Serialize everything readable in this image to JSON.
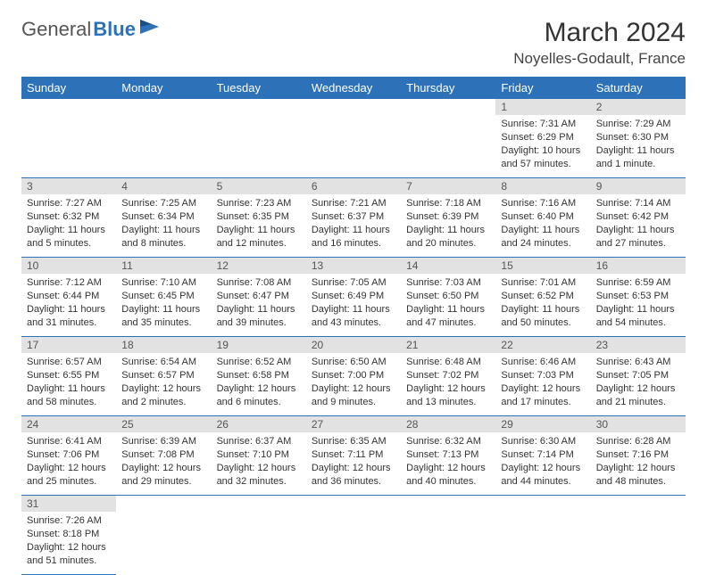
{
  "logo": {
    "part1": "General",
    "part2": "Blue"
  },
  "title": "March 2024",
  "location": "Noyelles-Godault, France",
  "colors": {
    "header_bg": "#2d71b8",
    "header_text": "#ffffff",
    "daynum_bg": "#e2e2e2",
    "border": "#2d71b8",
    "text": "#333333",
    "logo_gray": "#555555",
    "logo_blue": "#2d71b8",
    "page_bg": "#ffffff"
  },
  "weekdays": [
    "Sunday",
    "Monday",
    "Tuesday",
    "Wednesday",
    "Thursday",
    "Friday",
    "Saturday"
  ],
  "weeks": [
    [
      null,
      null,
      null,
      null,
      null,
      {
        "day": "1",
        "sunrise": "Sunrise: 7:31 AM",
        "sunset": "Sunset: 6:29 PM",
        "daylight": "Daylight: 10 hours and 57 minutes."
      },
      {
        "day": "2",
        "sunrise": "Sunrise: 7:29 AM",
        "sunset": "Sunset: 6:30 PM",
        "daylight": "Daylight: 11 hours and 1 minute."
      }
    ],
    [
      {
        "day": "3",
        "sunrise": "Sunrise: 7:27 AM",
        "sunset": "Sunset: 6:32 PM",
        "daylight": "Daylight: 11 hours and 5 minutes."
      },
      {
        "day": "4",
        "sunrise": "Sunrise: 7:25 AM",
        "sunset": "Sunset: 6:34 PM",
        "daylight": "Daylight: 11 hours and 8 minutes."
      },
      {
        "day": "5",
        "sunrise": "Sunrise: 7:23 AM",
        "sunset": "Sunset: 6:35 PM",
        "daylight": "Daylight: 11 hours and 12 minutes."
      },
      {
        "day": "6",
        "sunrise": "Sunrise: 7:21 AM",
        "sunset": "Sunset: 6:37 PM",
        "daylight": "Daylight: 11 hours and 16 minutes."
      },
      {
        "day": "7",
        "sunrise": "Sunrise: 7:18 AM",
        "sunset": "Sunset: 6:39 PM",
        "daylight": "Daylight: 11 hours and 20 minutes."
      },
      {
        "day": "8",
        "sunrise": "Sunrise: 7:16 AM",
        "sunset": "Sunset: 6:40 PM",
        "daylight": "Daylight: 11 hours and 24 minutes."
      },
      {
        "day": "9",
        "sunrise": "Sunrise: 7:14 AM",
        "sunset": "Sunset: 6:42 PM",
        "daylight": "Daylight: 11 hours and 27 minutes."
      }
    ],
    [
      {
        "day": "10",
        "sunrise": "Sunrise: 7:12 AM",
        "sunset": "Sunset: 6:44 PM",
        "daylight": "Daylight: 11 hours and 31 minutes."
      },
      {
        "day": "11",
        "sunrise": "Sunrise: 7:10 AM",
        "sunset": "Sunset: 6:45 PM",
        "daylight": "Daylight: 11 hours and 35 minutes."
      },
      {
        "day": "12",
        "sunrise": "Sunrise: 7:08 AM",
        "sunset": "Sunset: 6:47 PM",
        "daylight": "Daylight: 11 hours and 39 minutes."
      },
      {
        "day": "13",
        "sunrise": "Sunrise: 7:05 AM",
        "sunset": "Sunset: 6:49 PM",
        "daylight": "Daylight: 11 hours and 43 minutes."
      },
      {
        "day": "14",
        "sunrise": "Sunrise: 7:03 AM",
        "sunset": "Sunset: 6:50 PM",
        "daylight": "Daylight: 11 hours and 47 minutes."
      },
      {
        "day": "15",
        "sunrise": "Sunrise: 7:01 AM",
        "sunset": "Sunset: 6:52 PM",
        "daylight": "Daylight: 11 hours and 50 minutes."
      },
      {
        "day": "16",
        "sunrise": "Sunrise: 6:59 AM",
        "sunset": "Sunset: 6:53 PM",
        "daylight": "Daylight: 11 hours and 54 minutes."
      }
    ],
    [
      {
        "day": "17",
        "sunrise": "Sunrise: 6:57 AM",
        "sunset": "Sunset: 6:55 PM",
        "daylight": "Daylight: 11 hours and 58 minutes."
      },
      {
        "day": "18",
        "sunrise": "Sunrise: 6:54 AM",
        "sunset": "Sunset: 6:57 PM",
        "daylight": "Daylight: 12 hours and 2 minutes."
      },
      {
        "day": "19",
        "sunrise": "Sunrise: 6:52 AM",
        "sunset": "Sunset: 6:58 PM",
        "daylight": "Daylight: 12 hours and 6 minutes."
      },
      {
        "day": "20",
        "sunrise": "Sunrise: 6:50 AM",
        "sunset": "Sunset: 7:00 PM",
        "daylight": "Daylight: 12 hours and 9 minutes."
      },
      {
        "day": "21",
        "sunrise": "Sunrise: 6:48 AM",
        "sunset": "Sunset: 7:02 PM",
        "daylight": "Daylight: 12 hours and 13 minutes."
      },
      {
        "day": "22",
        "sunrise": "Sunrise: 6:46 AM",
        "sunset": "Sunset: 7:03 PM",
        "daylight": "Daylight: 12 hours and 17 minutes."
      },
      {
        "day": "23",
        "sunrise": "Sunrise: 6:43 AM",
        "sunset": "Sunset: 7:05 PM",
        "daylight": "Daylight: 12 hours and 21 minutes."
      }
    ],
    [
      {
        "day": "24",
        "sunrise": "Sunrise: 6:41 AM",
        "sunset": "Sunset: 7:06 PM",
        "daylight": "Daylight: 12 hours and 25 minutes."
      },
      {
        "day": "25",
        "sunrise": "Sunrise: 6:39 AM",
        "sunset": "Sunset: 7:08 PM",
        "daylight": "Daylight: 12 hours and 29 minutes."
      },
      {
        "day": "26",
        "sunrise": "Sunrise: 6:37 AM",
        "sunset": "Sunset: 7:10 PM",
        "daylight": "Daylight: 12 hours and 32 minutes."
      },
      {
        "day": "27",
        "sunrise": "Sunrise: 6:35 AM",
        "sunset": "Sunset: 7:11 PM",
        "daylight": "Daylight: 12 hours and 36 minutes."
      },
      {
        "day": "28",
        "sunrise": "Sunrise: 6:32 AM",
        "sunset": "Sunset: 7:13 PM",
        "daylight": "Daylight: 12 hours and 40 minutes."
      },
      {
        "day": "29",
        "sunrise": "Sunrise: 6:30 AM",
        "sunset": "Sunset: 7:14 PM",
        "daylight": "Daylight: 12 hours and 44 minutes."
      },
      {
        "day": "30",
        "sunrise": "Sunrise: 6:28 AM",
        "sunset": "Sunset: 7:16 PM",
        "daylight": "Daylight: 12 hours and 48 minutes."
      }
    ],
    [
      {
        "day": "31",
        "sunrise": "Sunrise: 7:26 AM",
        "sunset": "Sunset: 8:18 PM",
        "daylight": "Daylight: 12 hours and 51 minutes."
      },
      null,
      null,
      null,
      null,
      null,
      null
    ]
  ]
}
